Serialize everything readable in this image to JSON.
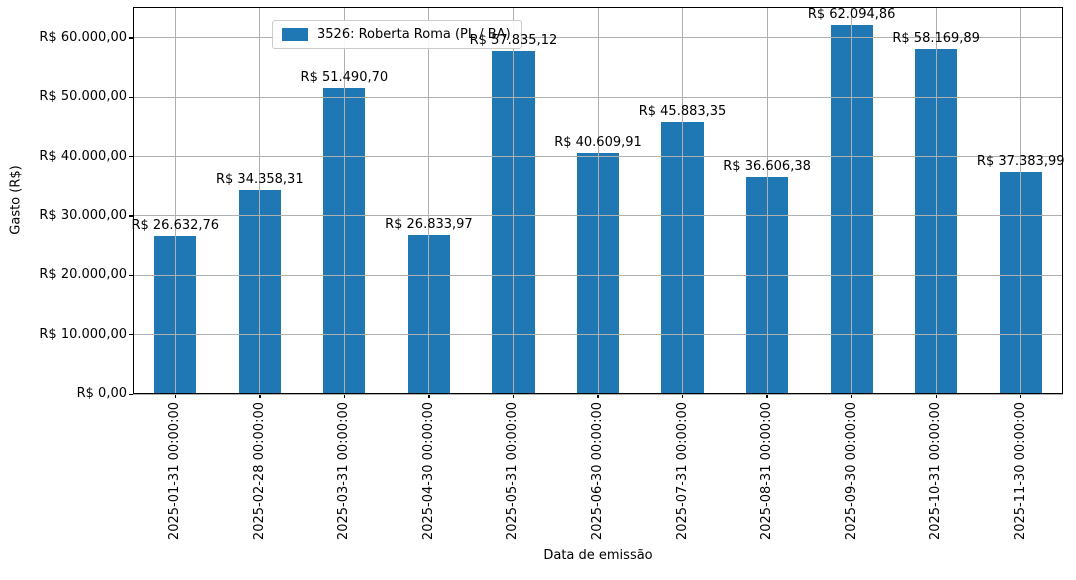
{
  "chart_data": {
    "type": "bar",
    "title": "",
    "xlabel": "Data de emissão",
    "ylabel": "Gasto (R$)",
    "legend": {
      "label": "3526: Roberta Roma (PL / BA)",
      "position": "upper left"
    },
    "categories": [
      "2025-01-31 00:00:00",
      "2025-02-28 00:00:00",
      "2025-03-31 00:00:00",
      "2025-04-30 00:00:00",
      "2025-05-31 00:00:00",
      "2025-06-30 00:00:00",
      "2025-07-31 00:00:00",
      "2025-08-31 00:00:00",
      "2025-09-30 00:00:00",
      "2025-10-31 00:00:00",
      "2025-11-30 00:00:00"
    ],
    "values": [
      26632.76,
      34358.31,
      51490.7,
      26833.97,
      57835.12,
      40609.91,
      45883.35,
      36606.38,
      62094.86,
      58169.89,
      37383.99
    ],
    "bar_labels": [
      "R$ 26.632,76",
      "R$ 34.358,31",
      "R$ 51.490,70",
      "R$ 26.833,97",
      "R$ 57.835,12",
      "R$ 40.609,91",
      "R$ 45.883,35",
      "R$ 36.606,38",
      "R$ 62.094,86",
      "R$ 58.169,89",
      "R$ 37.383,99"
    ],
    "ytick_values": [
      0,
      10000,
      20000,
      30000,
      40000,
      50000,
      60000
    ],
    "ytick_labels": [
      "R$ 0,00",
      "R$ 10.000,00",
      "R$ 20.000,00",
      "R$ 30.000,00",
      "R$ 40.000,00",
      "R$ 50.000,00",
      "R$ 60.000,00"
    ],
    "ylim": [
      0,
      65200
    ],
    "grid": true,
    "grid_above_bars": true,
    "bar_color": "#1f77b4",
    "grid_color": "#b0b0b0",
    "spine_color": "#000000",
    "background_color": "#ffffff"
  }
}
